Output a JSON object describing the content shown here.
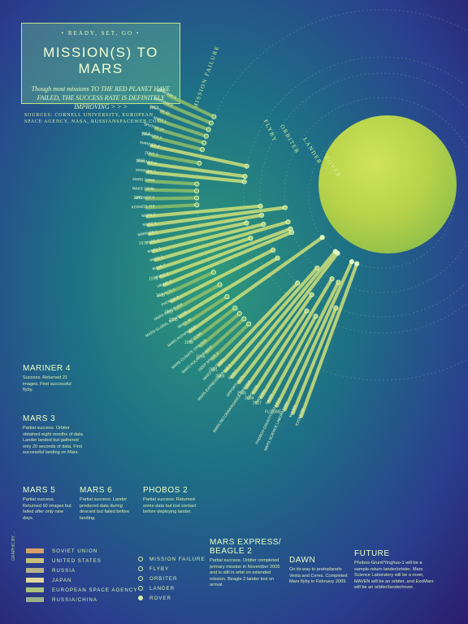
{
  "header": {
    "kicker": "• READY, SET, GO •",
    "title": "MISSION(S) TO MARS",
    "subtitle": "Though most missions TO THE RED PLANET HAVE FAILED, THE SUCCESS RATE IS DEFINITELY IMPROVING > > >",
    "sources": "SOURCES: CORNELL UNIVERSITY, EUROPEAN SPACE AGENCY, NASA, RUSSIANSPACEWEB.COM"
  },
  "rings": [
    "MISSION FAILURE",
    "FLYBY",
    "ORBITER",
    "LANDER",
    "ROVER"
  ],
  "legend": {
    "nations": [
      {
        "label": "SOVIET UNION",
        "color": "#d8a06a"
      },
      {
        "label": "UNITED STATES",
        "color": "#c7c07a"
      },
      {
        "label": "RUSSIA",
        "color": "#b8b48a"
      },
      {
        "label": "JAPAN",
        "color": "#e0d79a"
      },
      {
        "label": "EUROPEAN SPACE AGENCY",
        "color": "#a9c47a"
      },
      {
        "label": "RUSSIA/CHINA",
        "color": "#98b08a"
      }
    ],
    "outcomes": [
      "MISSION FAILURE",
      "FLYBY",
      "ORBITER",
      "LANDER",
      "ROVER"
    ]
  },
  "notes": [
    {
      "title": "MARINER 4",
      "body": "Success. Returned 21 images. First successful flyby."
    },
    {
      "title": "MARS 3",
      "body": "Partial success. Orbiter obtained eight months of data. Lander landed but gathered only 20 seconds of data. First successful landing on Mars."
    },
    {
      "title": "MARS 5",
      "body": "Partial success. Returned 60 images but failed after only nine days."
    },
    {
      "title": "MARS 6",
      "body": "Partial success. Lander produced data during descent but failed before landing."
    },
    {
      "title": "PHOBOS 2",
      "body": "Partial success. Returned some data but lost contact before deploying lander."
    },
    {
      "title": "MARS EXPRESS/ BEAGLE 2",
      "body": "Partial success. Orbiter completed primary mission in November 2005 and is still in orbit on extended mission. Beagle 2 lander lost on arrival."
    },
    {
      "title": "DAWN",
      "body": "On its way to protoplanets Vesta and Ceres. Completed Mars flyby in February 2009."
    },
    {
      "title": "FUTURE",
      "body": "Phobos-Grunt/Yinghuo-1 will be a sample-return lander/orbiter, Mars Science Laboratory will be a rover, MAVEN will be an orbiter, and ExoMars will be an orbiter/lander/rover."
    }
  ],
  "chart_data": {
    "type": "radial-bar",
    "outcome_levels": [
      "MISSION FAILURE",
      "FLYBY",
      "ORBITER",
      "LANDER",
      "ROVER"
    ],
    "missions": [
      {
        "name": "MARSNIK 1",
        "group": "1960",
        "outcome": 0
      },
      {
        "name": "MARSNIK 2",
        "group": "1960",
        "outcome": 0
      },
      {
        "name": "SPUTNIK 22",
        "group": "1962",
        "outcome": 0
      },
      {
        "name": "MARS 1",
        "group": "1962",
        "outcome": 0
      },
      {
        "name": "SPUTNIK 24",
        "group": "1962",
        "outcome": 0
      },
      {
        "name": "MARINER 3",
        "group": "1964",
        "outcome": 0
      },
      {
        "name": "MARINER 4",
        "group": "1964",
        "outcome": 1
      },
      {
        "name": "ZOND 2",
        "group": "1964",
        "outcome": 0
      },
      {
        "name": "MARINER 6",
        "group": "1969",
        "outcome": 1
      },
      {
        "name": "MARINER 7",
        "group": "1969",
        "outcome": 1
      },
      {
        "name": "MARS 1969A",
        "group": "1969",
        "outcome": 0
      },
      {
        "name": "MARS 1969B",
        "group": "1969",
        "outcome": 0
      },
      {
        "name": "MARINER 8",
        "group": "1971",
        "outcome": 0
      },
      {
        "name": "KOSMOS 419",
        "group": "1971",
        "outcome": 0
      },
      {
        "name": "MARS 2",
        "group": "1971",
        "outcome": 2
      },
      {
        "name": "MARS 3",
        "group": "1971",
        "outcome": 3
      },
      {
        "name": "MARINER 9",
        "group": "1971",
        "outcome": 2
      },
      {
        "name": "MARS 4",
        "group": "1973",
        "outcome": 1
      },
      {
        "name": "MARS 5",
        "group": "1973",
        "outcome": 2
      },
      {
        "name": "MARS 6",
        "group": "1973",
        "outcome": 3
      },
      {
        "name": "MARS 7",
        "group": "1973",
        "outcome": 1
      },
      {
        "name": "VIKING 1",
        "group": "1975",
        "outcome": 3
      },
      {
        "name": "VIKING 2",
        "group": "1975",
        "outcome": 3
      },
      {
        "name": "PHOBOS 1",
        "group": "1988",
        "outcome": 0
      },
      {
        "name": "PHOBOS 2",
        "group": "1988",
        "outcome": 2
      },
      {
        "name": "MARS OBSERVER",
        "group": "1992",
        "outcome": 0
      },
      {
        "name": "MARS GLOBAL SURVEYOR",
        "group": "1996",
        "outcome": 2
      },
      {
        "name": "MARS 96",
        "group": "1996",
        "outcome": 0
      },
      {
        "name": "MARS PATHFINDER",
        "group": "1996",
        "outcome": 4
      },
      {
        "name": "NOZOMI",
        "group": "1998",
        "outcome": 0
      },
      {
        "name": "MARS CLIMATE ORBITER",
        "group": "1998",
        "outcome": 0
      },
      {
        "name": "MARS POLAR LANDER",
        "group": "1999",
        "outcome": 0
      },
      {
        "name": "DEEP SPACE 2",
        "group": "1999",
        "outcome": 0
      },
      {
        "name": "MARS ODYSSEY",
        "group": "2001",
        "outcome": 2
      },
      {
        "name": "MARS EXPRESS/BEAGLE 2",
        "group": "2003",
        "outcome": 3
      },
      {
        "name": "SPIRIT",
        "group": "2003",
        "outcome": 4
      },
      {
        "name": "OPPORTUNITY",
        "group": "2003",
        "outcome": 4
      },
      {
        "name": "MARS RECONNAISSANCE ORBITER",
        "group": "2005",
        "outcome": 2
      },
      {
        "name": "ROSETTA",
        "group": "2004",
        "outcome": 1
      },
      {
        "name": "PHOENIX",
        "group": "2007",
        "outcome": 3
      },
      {
        "name": "DAWN",
        "group": "2007",
        "outcome": 1
      },
      {
        "name": "PHOBOS-GRUNT/YINGHUO-1",
        "group": "FUTURE",
        "outcome": 3
      },
      {
        "name": "MARS SCIENCE LABORATORY",
        "group": "FUTURE",
        "outcome": 4
      },
      {
        "name": "MAVEN",
        "group": "FUTURE",
        "outcome": 2
      },
      {
        "name": "EXOMARS",
        "group": "FUTURE",
        "outcome": 4
      }
    ]
  },
  "credit": "GRAPHIC BY ..."
}
